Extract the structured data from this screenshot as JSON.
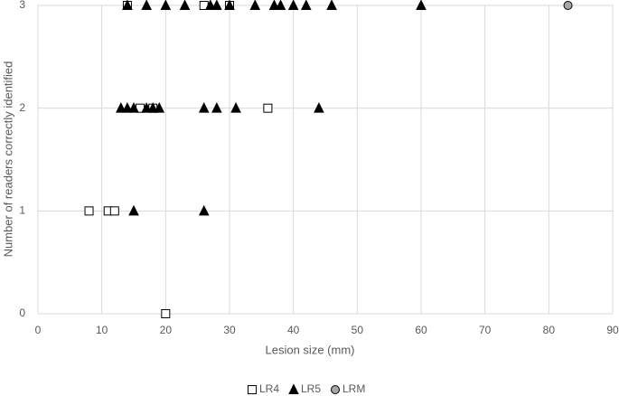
{
  "chart_data": {
    "type": "scatter",
    "xlabel": "Lesion size (mm)",
    "ylabel": "Number of readers correctly identified",
    "xlim": [
      0,
      90
    ],
    "xticks": [
      0,
      10,
      20,
      30,
      40,
      50,
      60,
      70,
      80,
      90
    ],
    "ylim": [
      0,
      3
    ],
    "yticks": [
      0,
      1,
      2,
      3
    ],
    "grid": true,
    "legend": "bottom",
    "series": [
      {
        "name": "LR4",
        "marker": "square",
        "color": "#ffffff",
        "x": [
          14,
          26,
          30,
          16,
          18,
          36,
          8,
          11,
          12,
          20
        ],
        "y": [
          3,
          3,
          3,
          2,
          2,
          2,
          1,
          1,
          1,
          0
        ]
      },
      {
        "name": "LR5",
        "marker": "triangle",
        "color": "#000000",
        "x": [
          14,
          17,
          20,
          23,
          27,
          28,
          30,
          34,
          37,
          38,
          40,
          42,
          46,
          60,
          13,
          14,
          15,
          17,
          18,
          19,
          26,
          28,
          31,
          44,
          15,
          26
        ],
        "y": [
          3,
          3,
          3,
          3,
          3,
          3,
          3,
          3,
          3,
          3,
          3,
          3,
          3,
          3,
          2,
          2,
          2,
          2,
          2,
          2,
          2,
          2,
          2,
          2,
          1,
          1
        ]
      },
      {
        "name": "LRM",
        "marker": "circle",
        "color": "#a6a6a6",
        "x": [
          83
        ],
        "y": [
          3
        ]
      }
    ]
  }
}
